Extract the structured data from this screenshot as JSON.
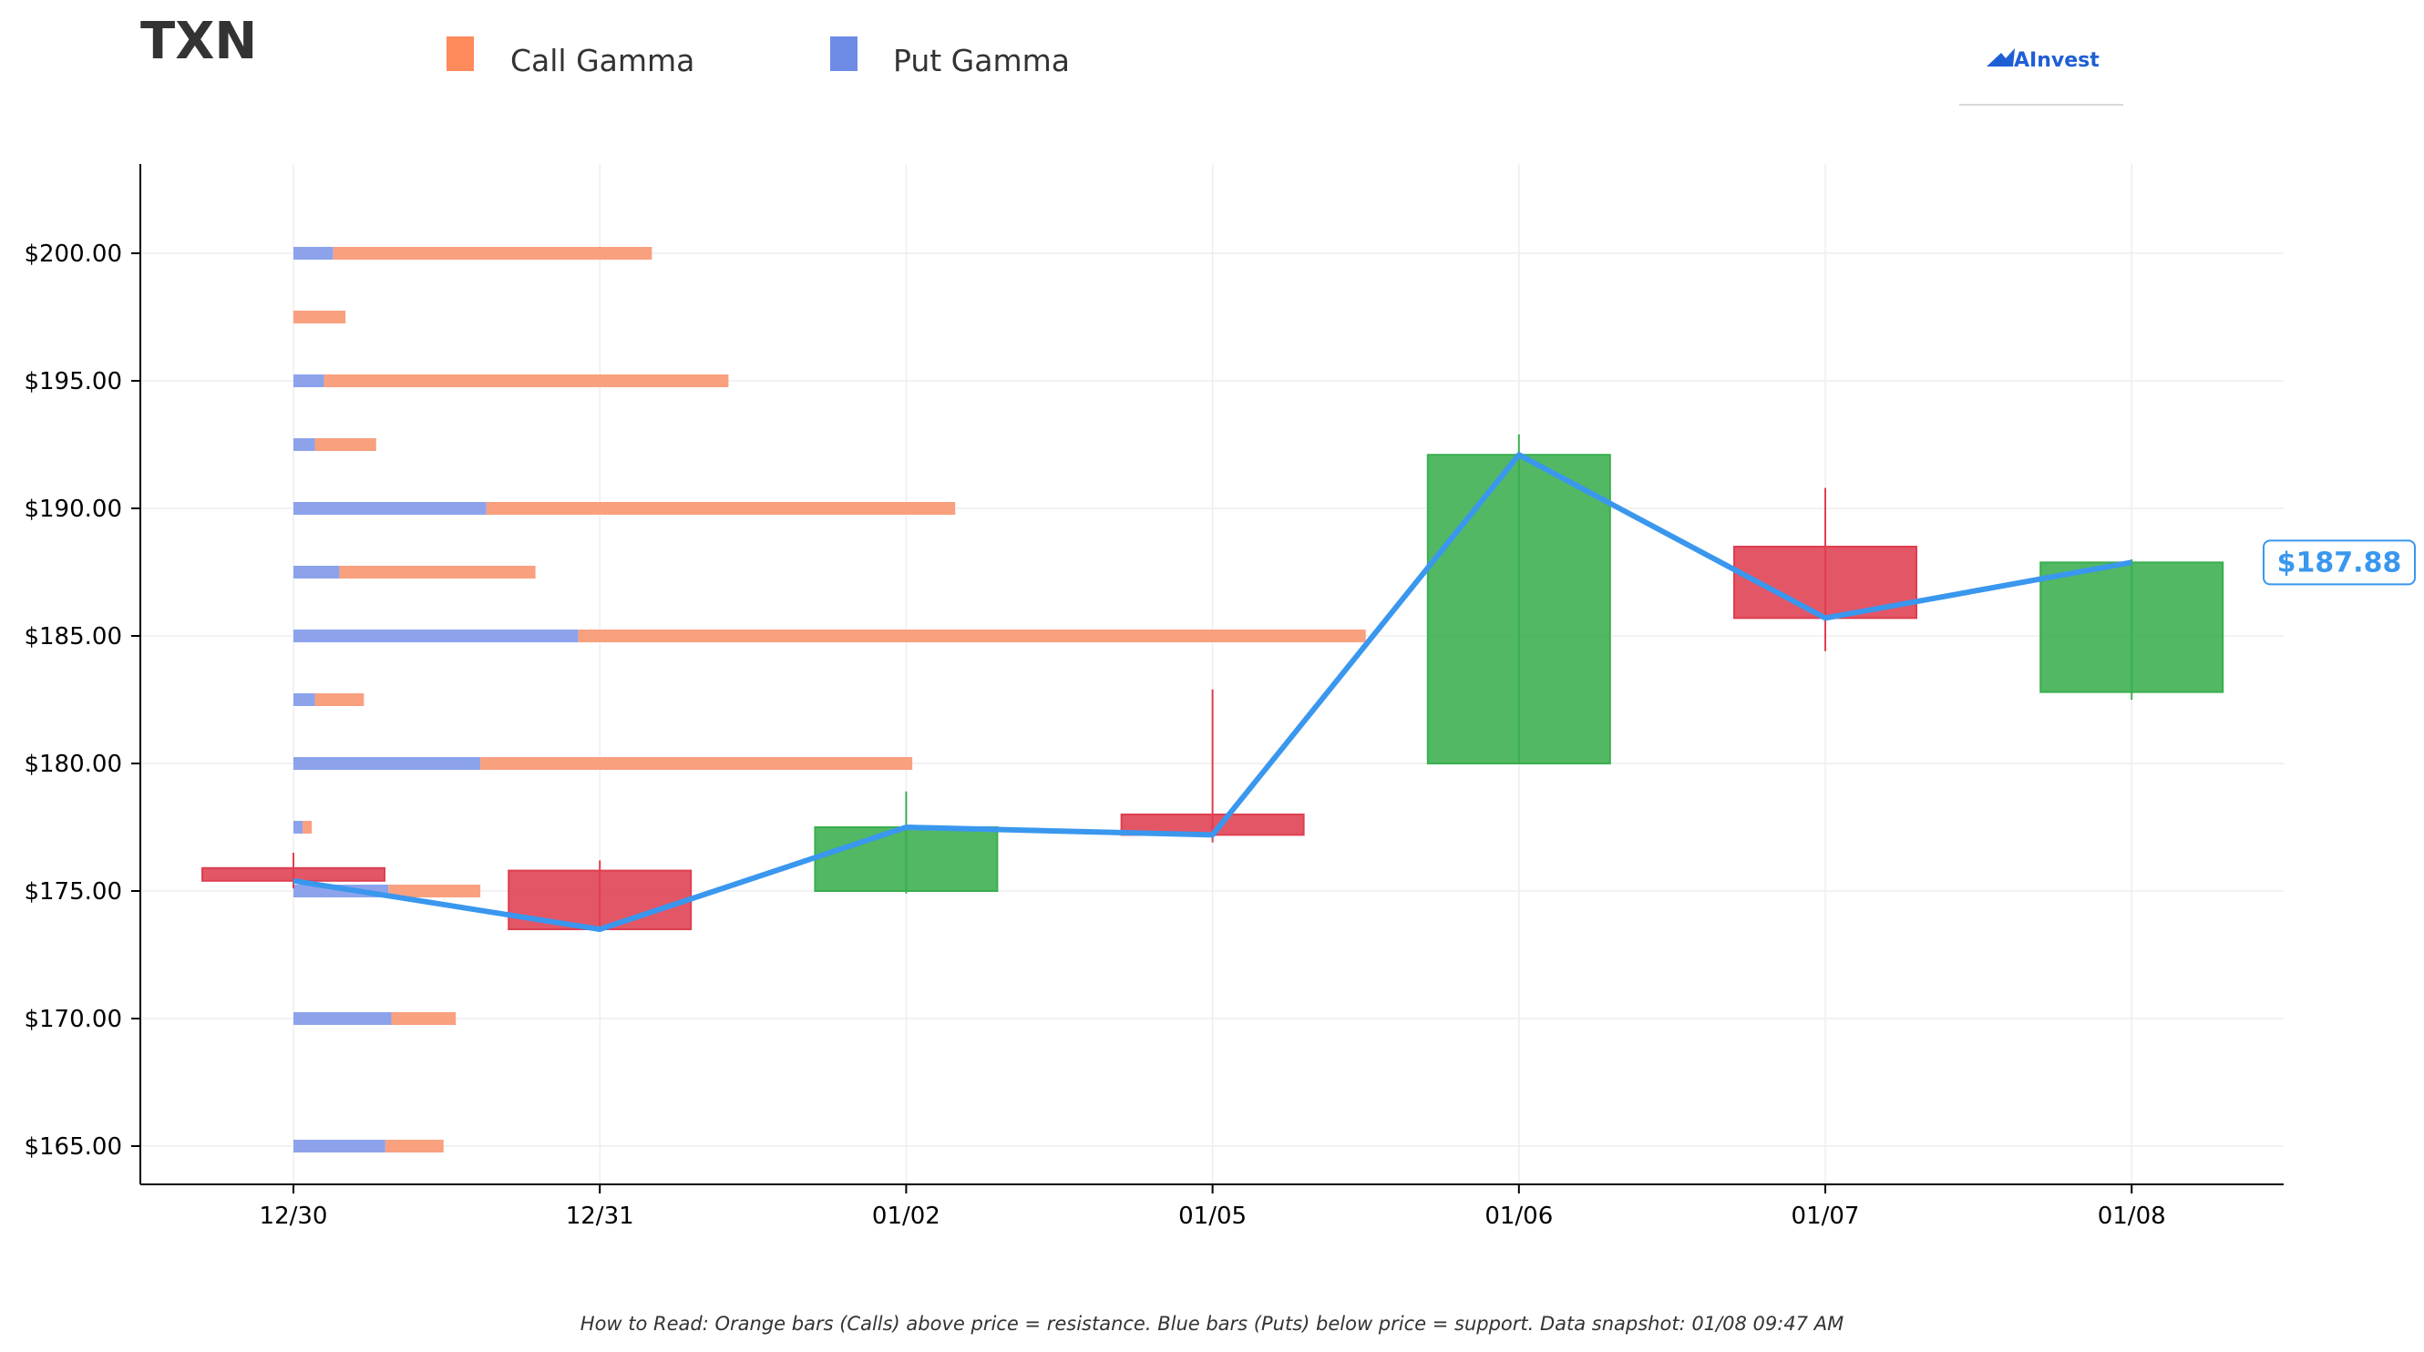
{
  "header": {
    "ticker": "TXN",
    "legend": [
      {
        "label": "Call Gamma",
        "color": "#ff8a5c"
      },
      {
        "label": "Put Gamma",
        "color": "#6e8be6"
      }
    ],
    "logo_text": "AInvest"
  },
  "footer_note": "How to Read: Orange bars (Calls) above price = resistance. Blue bars (Puts) below price = support. Data snapshot: 01/08 09:47 AM",
  "chart_data": {
    "type": "candlestick",
    "title": "TXN",
    "x_categories": [
      "12/30",
      "12/31",
      "01/02",
      "01/05",
      "01/06",
      "01/07",
      "01/08"
    ],
    "ylim": [
      163.5,
      203.5
    ],
    "y_ticks": [
      165,
      170,
      175,
      180,
      185,
      190,
      195,
      200
    ],
    "y_tick_labels": [
      "$165.00",
      "$170.00",
      "$175.00",
      "$180.00",
      "$185.00",
      "$190.00",
      "$195.00",
      "$200.00"
    ],
    "grid": true,
    "legend_position": "top",
    "colors": {
      "up": "#3aae4f",
      "down": "#de3f51",
      "close_line": "#3a97ee",
      "call_gamma": "#f9a07f",
      "put_gamma": "#8ca3ec"
    },
    "candles": [
      {
        "date": "12/30",
        "open": 175.9,
        "high": 176.5,
        "low": 175.1,
        "close": 175.4
      },
      {
        "date": "12/31",
        "open": 175.8,
        "high": 176.2,
        "low": 173.4,
        "close": 173.5
      },
      {
        "date": "01/02",
        "open": 175.0,
        "high": 178.9,
        "low": 174.9,
        "close": 177.5
      },
      {
        "date": "01/05",
        "open": 178.0,
        "high": 182.9,
        "low": 176.9,
        "close": 177.2
      },
      {
        "date": "01/06",
        "open": 180.0,
        "high": 192.9,
        "low": 180.0,
        "close": 192.1
      },
      {
        "date": "01/07",
        "open": 188.5,
        "high": 190.8,
        "low": 184.4,
        "close": 185.7
      },
      {
        "date": "01/08",
        "open": 182.8,
        "high": 188.0,
        "low": 182.5,
        "close": 187.88
      }
    ],
    "close_line": {
      "name": "Close",
      "values": [
        175.4,
        173.5,
        177.5,
        177.2,
        192.1,
        185.7,
        187.88
      ]
    },
    "last_price_label": "$187.88",
    "gamma_series": [
      {
        "name": "Put Gamma",
        "units": "category widths",
        "strikes": [
          200,
          197.5,
          195,
          192.5,
          190,
          187.5,
          185,
          182.5,
          180,
          177.5,
          175,
          170,
          165
        ],
        "values": [
          0.13,
          0,
          0.1,
          0.07,
          0.63,
          0.15,
          0.93,
          0.07,
          0.61,
          0.03,
          0.31,
          0.32,
          0.3
        ]
      },
      {
        "name": "Call Gamma",
        "units": "category widths",
        "strikes": [
          200,
          197.5,
          195,
          192.5,
          190,
          187.5,
          185,
          182.5,
          180,
          177.5,
          175,
          170,
          165
        ],
        "values": [
          1.04,
          0.17,
          1.32,
          0.2,
          1.53,
          0.64,
          2.57,
          0.16,
          1.41,
          0.03,
          0.3,
          0.21,
          0.19
        ]
      }
    ]
  }
}
